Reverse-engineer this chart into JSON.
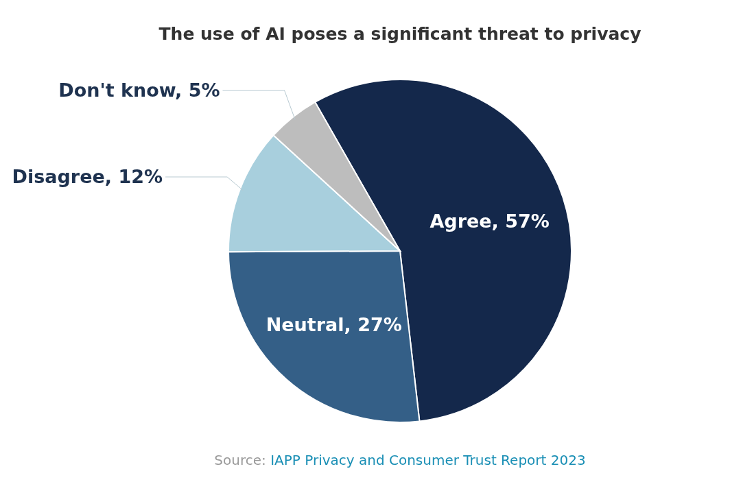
{
  "chart_data": {
    "type": "pie",
    "title": "The use of AI poses a significant threat to privacy",
    "categories": [
      "Agree",
      "Neutral",
      "Disagree",
      "Don't know"
    ],
    "values": [
      57,
      27,
      12,
      5
    ],
    "value_labels": [
      "57%",
      "27%",
      "12%",
      "5%"
    ],
    "colors": [
      "#14284b",
      "#345f87",
      "#a8cfdd",
      "#bdbdbd"
    ],
    "annotations": [
      "Source: IAPP Privacy and Consumer Trust Report 2023"
    ]
  }
}
